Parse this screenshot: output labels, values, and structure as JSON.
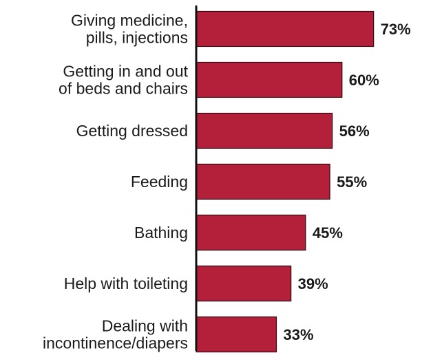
{
  "chart_data": {
    "type": "bar",
    "orientation": "horizontal",
    "title": "",
    "xlabel": "",
    "ylabel": "",
    "categories": [
      [
        "Giving medicine,",
        "pills, injections"
      ],
      [
        "Getting in and out",
        "of beds and chairs"
      ],
      [
        "Getting dressed"
      ],
      [
        "Feeding"
      ],
      [
        "Bathing"
      ],
      [
        "Help with toileting"
      ],
      [
        "Dealing with",
        "incontinence/diapers"
      ]
    ],
    "values": [
      73,
      60,
      56,
      55,
      45,
      39,
      33
    ],
    "value_labels": [
      "73%",
      "60%",
      "56%",
      "55%",
      "45%",
      "39%",
      "33%"
    ],
    "xlim": [
      0,
      100
    ],
    "grid": false,
    "legend": "none",
    "colors": {
      "bar": "#b41f3a",
      "bar_border": "#2a0a10",
      "axis": "#111111",
      "text": "#1a1a1a"
    }
  }
}
